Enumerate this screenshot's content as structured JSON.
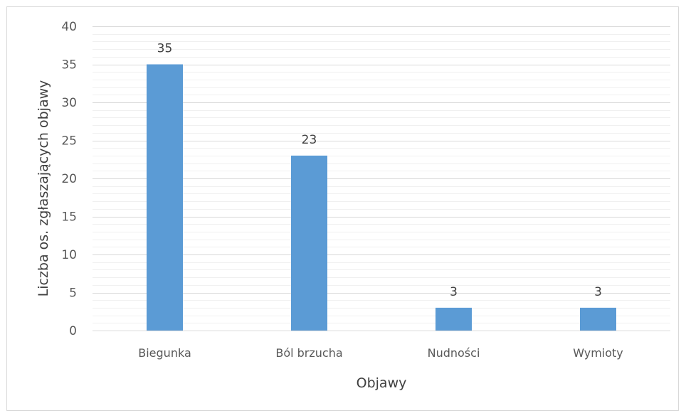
{
  "chart_data": {
    "type": "bar",
    "categories": [
      "Biegunka",
      "Ból brzucha",
      "Nudności",
      "Wymioty"
    ],
    "values": [
      35,
      23,
      3,
      3
    ],
    "title": "",
    "xlabel": "Objawy",
    "ylabel": "Liczba os. zgłaszających objawy",
    "ylim": [
      0,
      40
    ],
    "yticks": [
      0,
      5,
      10,
      15,
      20,
      25,
      30,
      35,
      40
    ],
    "minor_tick_step": 1,
    "grid": true,
    "legend": "none",
    "data_labels": true,
    "colors": {
      "bar": "#5b9bd5",
      "major_grid": "#d9d9d9",
      "minor_grid": "#f0f0f0",
      "axis_line": "#d9d9d9"
    }
  }
}
